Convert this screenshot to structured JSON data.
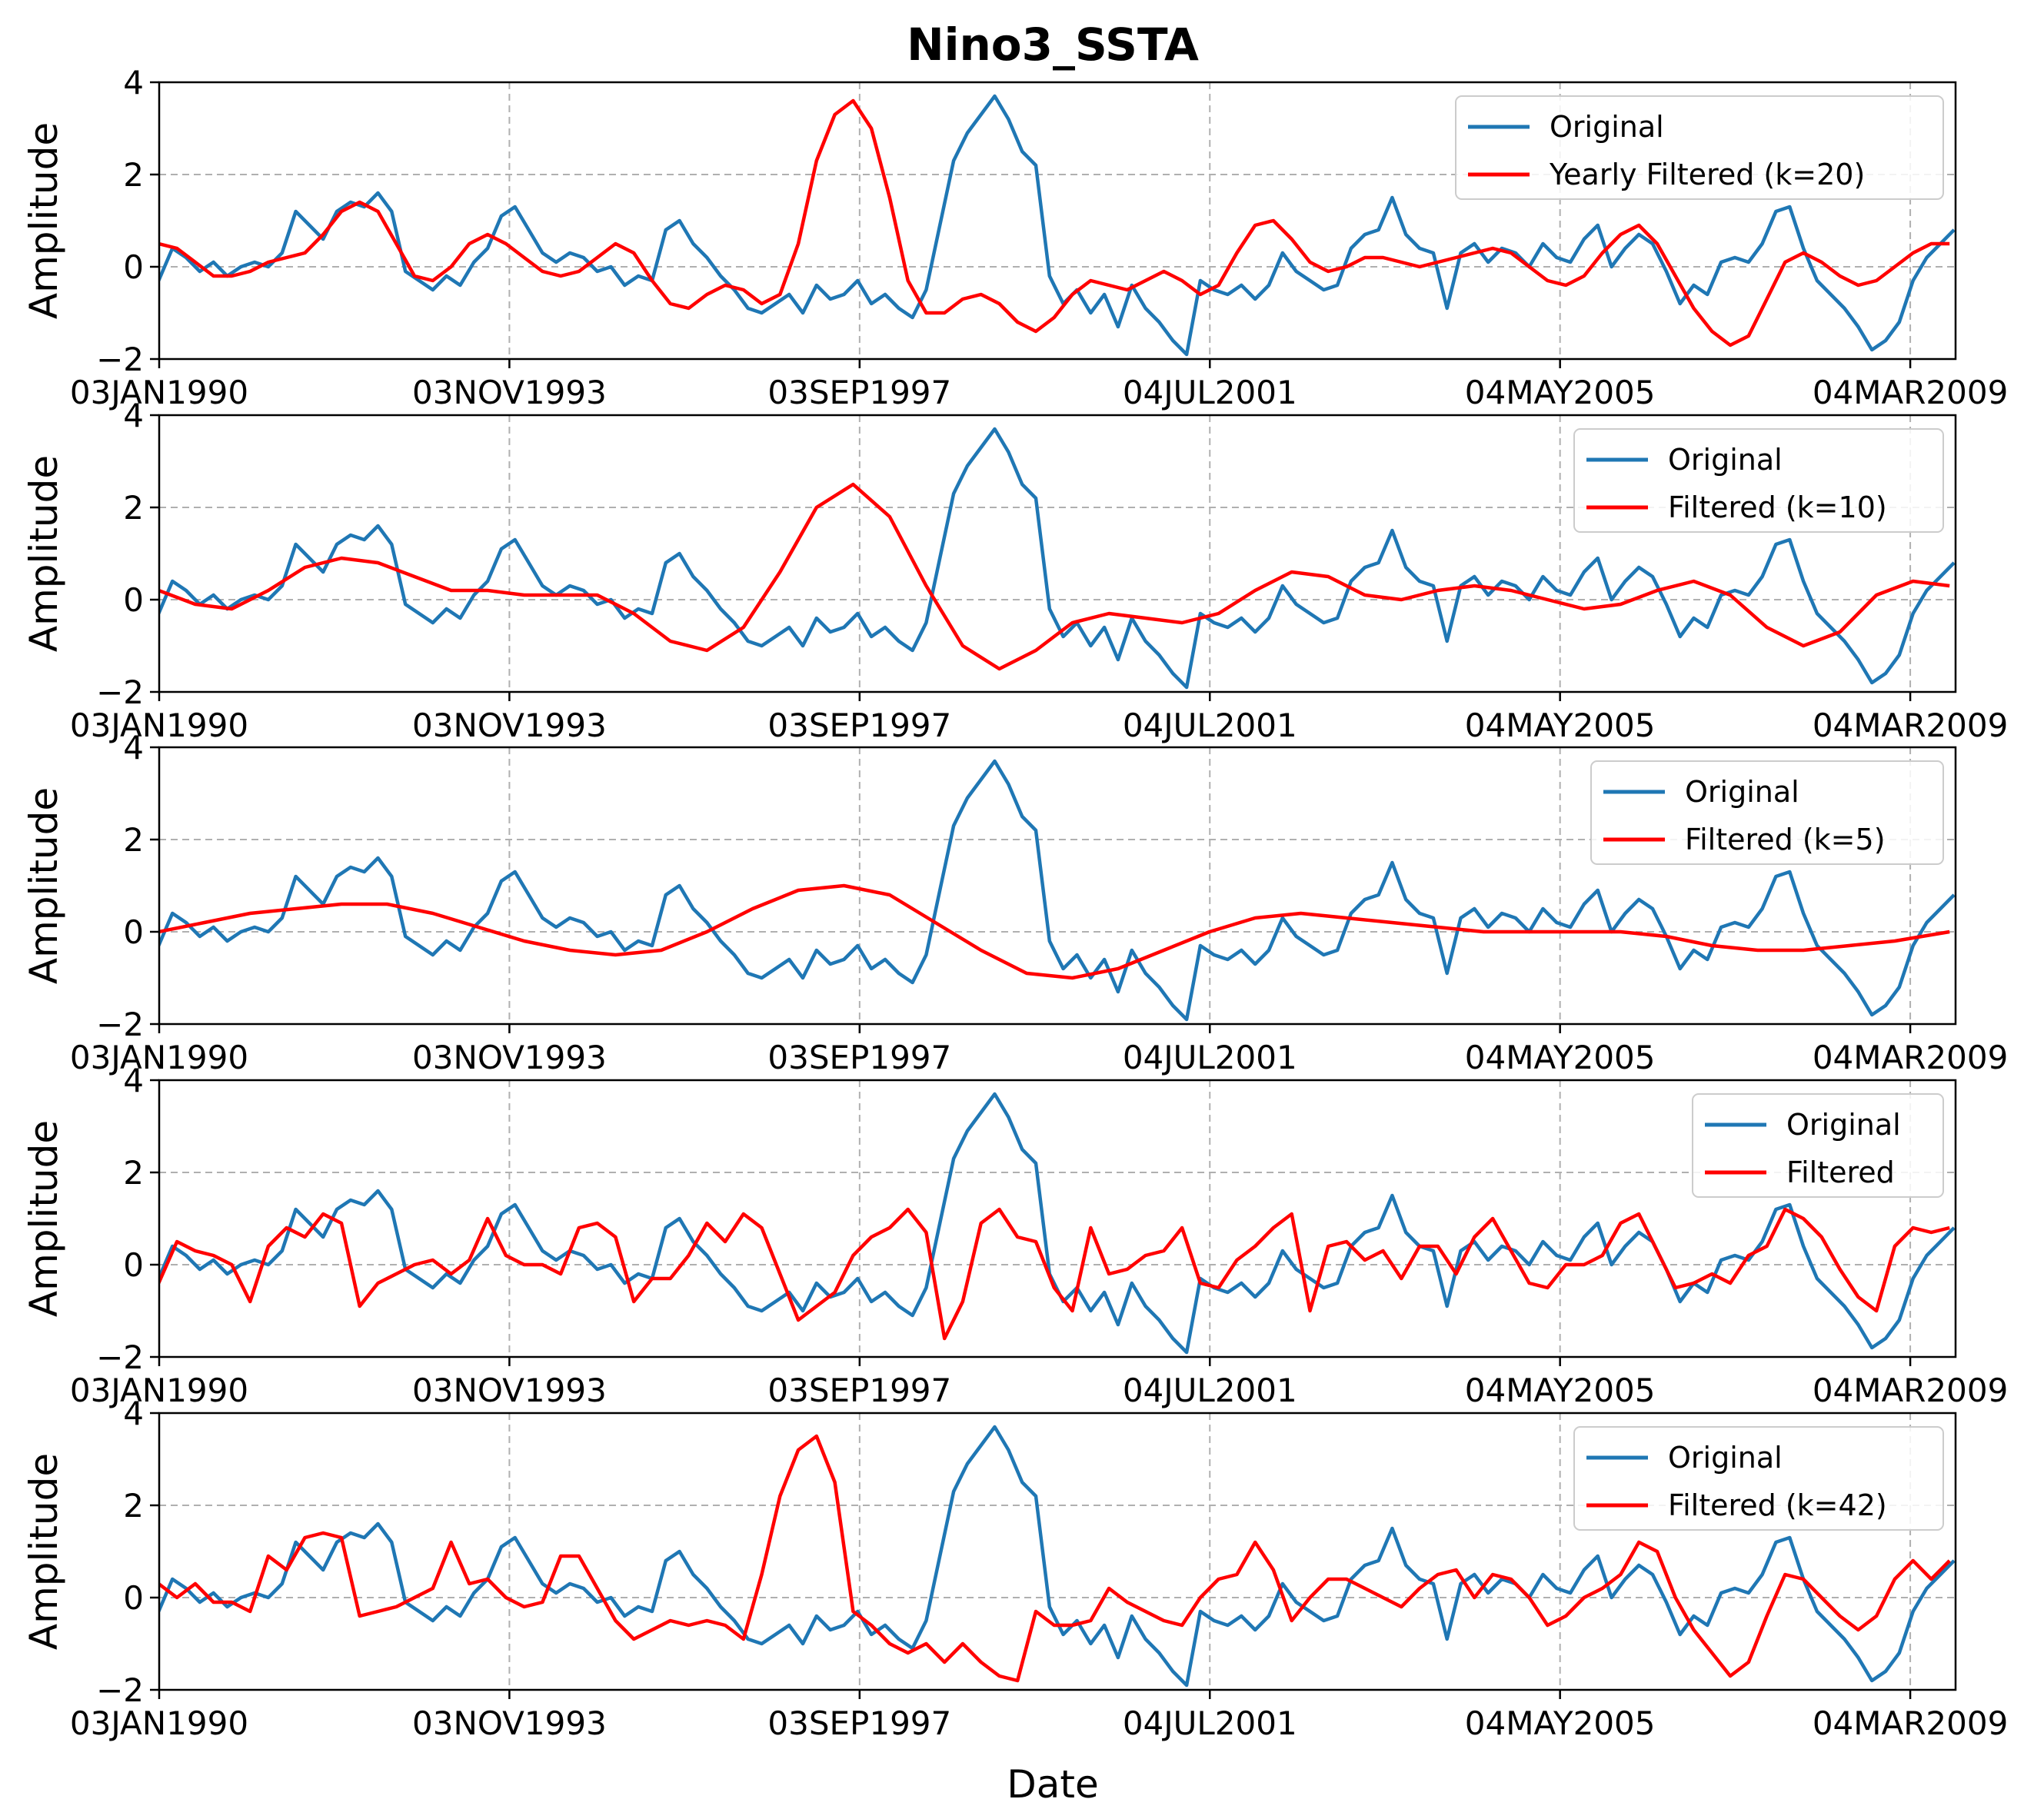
{
  "chart_data": {
    "type": "line",
    "title": "Nino3_SSTA",
    "xlabel": "Date",
    "ylabel": "Amplitude",
    "ylim": [
      -2,
      4
    ],
    "yticks": [
      "−2",
      "0",
      "2",
      "4"
    ],
    "xlim": [
      "1990-01-03",
      "2009-09-01"
    ],
    "xticks": [
      {
        "date": "1990-01-03",
        "label": "03JAN1990"
      },
      {
        "date": "1993-11-03",
        "label": "03NOV1993"
      },
      {
        "date": "1997-09-03",
        "label": "03SEP1997"
      },
      {
        "date": "2001-07-04",
        "label": "04JUL2001"
      },
      {
        "date": "2005-05-04",
        "label": "04MAY2005"
      },
      {
        "date": "2009-03-04",
        "label": "04MAR2009"
      }
    ],
    "grid": true,
    "legend_position": "top-right",
    "colors": {
      "original": "#1f77b4",
      "filtered": "#ff0000"
    },
    "original_series": {
      "name": "Original",
      "x": [
        1990.0,
        1990.15,
        1990.3,
        1990.45,
        1990.6,
        1990.75,
        1990.9,
        1991.05,
        1991.2,
        1991.35,
        1991.5,
        1991.65,
        1991.8,
        1991.95,
        1992.1,
        1992.25,
        1992.4,
        1992.55,
        1992.7,
        1992.85,
        1993.0,
        1993.15,
        1993.3,
        1993.45,
        1993.6,
        1993.75,
        1993.9,
        1994.05,
        1994.2,
        1994.35,
        1994.5,
        1994.65,
        1994.8,
        1994.95,
        1995.1,
        1995.25,
        1995.4,
        1995.55,
        1995.7,
        1995.85,
        1996.0,
        1996.15,
        1996.3,
        1996.45,
        1996.6,
        1996.75,
        1996.9,
        1997.05,
        1997.2,
        1997.35,
        1997.5,
        1997.65,
        1997.8,
        1997.95,
        1998.1,
        1998.25,
        1998.4,
        1998.55,
        1998.7,
        1998.85,
        1999.0,
        1999.15,
        1999.3,
        1999.45,
        1999.6,
        1999.75,
        1999.9,
        2000.05,
        2000.2,
        2000.35,
        2000.5,
        2000.65,
        2000.8,
        2000.95,
        2001.1,
        2001.25,
        2001.4,
        2001.55,
        2001.7,
        2001.85,
        2002.0,
        2002.15,
        2002.3,
        2002.45,
        2002.6,
        2002.75,
        2002.9,
        2003.05,
        2003.2,
        2003.35,
        2003.5,
        2003.65,
        2003.8,
        2003.95,
        2004.1,
        2004.25,
        2004.4,
        2004.55,
        2004.7,
        2004.85,
        2005.0,
        2005.15,
        2005.3,
        2005.45,
        2005.6,
        2005.75,
        2005.9,
        2006.05,
        2006.2,
        2006.35,
        2006.5,
        2006.65,
        2006.8,
        2006.95,
        2007.1,
        2007.25,
        2007.4,
        2007.55,
        2007.7,
        2007.85,
        2008.0,
        2008.15,
        2008.3,
        2008.45,
        2008.6,
        2008.75,
        2008.9,
        2009.05,
        2009.2,
        2009.35,
        2009.5,
        2009.65
      ],
      "y": [
        -0.3,
        0.4,
        0.2,
        -0.1,
        0.1,
        -0.2,
        0.0,
        0.1,
        0.0,
        0.3,
        1.2,
        0.9,
        0.6,
        1.2,
        1.4,
        1.3,
        1.6,
        1.2,
        -0.1,
        -0.3,
        -0.5,
        -0.2,
        -0.4,
        0.1,
        0.4,
        1.1,
        1.3,
        0.8,
        0.3,
        0.1,
        0.3,
        0.2,
        -0.1,
        0.0,
        -0.4,
        -0.2,
        -0.3,
        0.8,
        1.0,
        0.5,
        0.2,
        -0.2,
        -0.5,
        -0.9,
        -1.0,
        -0.8,
        -0.6,
        -1.0,
        -0.4,
        -0.7,
        -0.6,
        -0.3,
        -0.8,
        -0.6,
        -0.9,
        -1.1,
        -0.5,
        0.9,
        2.3,
        2.9,
        3.3,
        3.7,
        3.2,
        2.5,
        2.2,
        -0.2,
        -0.8,
        -0.5,
        -1.0,
        -0.6,
        -1.3,
        -0.4,
        -0.9,
        -1.2,
        -1.6,
        -1.9,
        -0.3,
        -0.5,
        -0.6,
        -0.4,
        -0.7,
        -0.4,
        0.3,
        -0.1,
        -0.3,
        -0.5,
        -0.4,
        0.4,
        0.7,
        0.8,
        1.5,
        0.7,
        0.4,
        0.3,
        -0.9,
        0.3,
        0.5,
        0.1,
        0.4,
        0.3,
        0.0,
        0.5,
        0.2,
        0.1,
        0.6,
        0.9,
        0.0,
        0.4,
        0.7,
        0.5,
        -0.1,
        -0.8,
        -0.4,
        -0.6,
        0.1,
        0.2,
        0.1,
        0.5,
        1.2,
        1.3,
        0.4,
        -0.3,
        -0.6,
        -0.9,
        -1.3,
        -1.8,
        -1.6,
        -1.2,
        -0.3,
        0.2,
        0.5,
        0.8
      ]
    },
    "panels": [
      {
        "filtered_name": "Yearly Filtered (k=20)",
        "filtered_x": [
          1990.0,
          1990.2,
          1990.4,
          1990.6,
          1990.8,
          1991.0,
          1991.2,
          1991.4,
          1991.6,
          1991.8,
          1992.0,
          1992.2,
          1992.4,
          1992.6,
          1992.8,
          1993.0,
          1993.2,
          1993.4,
          1993.6,
          1993.8,
          1994.0,
          1994.2,
          1994.4,
          1994.6,
          1994.8,
          1995.0,
          1995.2,
          1995.4,
          1995.6,
          1995.8,
          1996.0,
          1996.2,
          1996.4,
          1996.6,
          1996.8,
          1997.0,
          1997.2,
          1997.4,
          1997.6,
          1997.8,
          1998.0,
          1998.2,
          1998.4,
          1998.6,
          1998.8,
          1999.0,
          1999.2,
          1999.4,
          1999.6,
          1999.8,
          2000.0,
          2000.2,
          2000.4,
          2000.6,
          2000.8,
          2001.0,
          2001.2,
          2001.4,
          2001.6,
          2001.8,
          2002.0,
          2002.2,
          2002.4,
          2002.6,
          2002.8,
          2003.0,
          2003.2,
          2003.4,
          2003.6,
          2003.8,
          2004.0,
          2004.2,
          2004.4,
          2004.6,
          2004.8,
          2005.0,
          2005.2,
          2005.4,
          2005.6,
          2005.8,
          2006.0,
          2006.2,
          2006.4,
          2006.6,
          2006.8,
          2007.0,
          2007.2,
          2007.4,
          2007.6,
          2007.8,
          2008.0,
          2008.2,
          2008.4,
          2008.6,
          2008.8,
          2009.0,
          2009.2,
          2009.4,
          2009.6
        ],
        "filtered_y": [
          0.5,
          0.4,
          0.1,
          -0.2,
          -0.2,
          -0.1,
          0.1,
          0.2,
          0.3,
          0.7,
          1.2,
          1.4,
          1.2,
          0.5,
          -0.2,
          -0.3,
          0.0,
          0.5,
          0.7,
          0.5,
          0.2,
          -0.1,
          -0.2,
          -0.1,
          0.2,
          0.5,
          0.3,
          -0.3,
          -0.8,
          -0.9,
          -0.6,
          -0.4,
          -0.5,
          -0.8,
          -0.6,
          0.5,
          2.3,
          3.3,
          3.6,
          3.0,
          1.5,
          -0.3,
          -1.0,
          -1.0,
          -0.7,
          -0.6,
          -0.8,
          -1.2,
          -1.4,
          -1.1,
          -0.6,
          -0.3,
          -0.4,
          -0.5,
          -0.3,
          -0.1,
          -0.3,
          -0.6,
          -0.4,
          0.3,
          0.9,
          1.0,
          0.6,
          0.1,
          -0.1,
          0.0,
          0.2,
          0.2,
          0.1,
          0.0,
          0.1,
          0.2,
          0.3,
          0.4,
          0.3,
          0.0,
          -0.3,
          -0.4,
          -0.2,
          0.3,
          0.7,
          0.9,
          0.5,
          -0.2,
          -0.9,
          -1.4,
          -1.7,
          -1.5,
          -0.7,
          0.1,
          0.3,
          0.1,
          -0.2,
          -0.4,
          -0.3,
          0.0,
          0.3,
          0.5,
          0.5
        ]
      },
      {
        "filtered_name": "Filtered (k=10)",
        "filtered_x": [
          1990.0,
          1990.4,
          1990.8,
          1991.2,
          1991.6,
          1992.0,
          1992.4,
          1992.8,
          1993.2,
          1993.6,
          1994.0,
          1994.4,
          1994.8,
          1995.2,
          1995.6,
          1996.0,
          1996.4,
          1996.8,
          1997.2,
          1997.6,
          1998.0,
          1998.4,
          1998.8,
          1999.2,
          1999.6,
          2000.0,
          2000.4,
          2000.8,
          2001.2,
          2001.6,
          2002.0,
          2002.4,
          2002.8,
          2003.2,
          2003.6,
          2004.0,
          2004.4,
          2004.8,
          2005.2,
          2005.6,
          2006.0,
          2006.4,
          2006.8,
          2007.2,
          2007.6,
          2008.0,
          2008.4,
          2008.8,
          2009.2,
          2009.6
        ],
        "filtered_y": [
          0.2,
          -0.1,
          -0.2,
          0.2,
          0.7,
          0.9,
          0.8,
          0.5,
          0.2,
          0.2,
          0.1,
          0.1,
          0.1,
          -0.3,
          -0.9,
          -1.1,
          -0.6,
          0.6,
          2.0,
          2.5,
          1.8,
          0.3,
          -1.0,
          -1.5,
          -1.1,
          -0.5,
          -0.3,
          -0.4,
          -0.5,
          -0.3,
          0.2,
          0.6,
          0.5,
          0.1,
          0.0,
          0.2,
          0.3,
          0.2,
          0.0,
          -0.2,
          -0.1,
          0.2,
          0.4,
          0.1,
          -0.6,
          -1.0,
          -0.7,
          0.1,
          0.4,
          0.3
        ]
      },
      {
        "filtered_name": "Filtered (k=5)",
        "filtered_x": [
          1990.0,
          1990.5,
          1991.0,
          1991.5,
          1992.0,
          1992.5,
          1993.0,
          1993.5,
          1994.0,
          1994.5,
          1995.0,
          1995.5,
          1996.0,
          1996.5,
          1997.0,
          1997.5,
          1998.0,
          1998.5,
          1999.0,
          1999.5,
          2000.0,
          2000.5,
          2001.0,
          2001.5,
          2002.0,
          2002.5,
          2003.0,
          2003.5,
          2004.0,
          2004.5,
          2005.0,
          2005.5,
          2006.0,
          2006.5,
          2007.0,
          2007.5,
          2008.0,
          2008.5,
          2009.0,
          2009.6
        ],
        "filtered_y": [
          0.0,
          0.2,
          0.4,
          0.5,
          0.6,
          0.6,
          0.4,
          0.1,
          -0.2,
          -0.4,
          -0.5,
          -0.4,
          0.0,
          0.5,
          0.9,
          1.0,
          0.8,
          0.2,
          -0.4,
          -0.9,
          -1.0,
          -0.8,
          -0.4,
          0.0,
          0.3,
          0.4,
          0.3,
          0.2,
          0.1,
          0.0,
          0.0,
          0.0,
          0.0,
          -0.1,
          -0.3,
          -0.4,
          -0.4,
          -0.3,
          -0.2,
          0.0
        ]
      },
      {
        "filtered_name": "Filtered",
        "filtered_x": [
          1990.0,
          1990.2,
          1990.4,
          1990.6,
          1990.8,
          1991.0,
          1991.2,
          1991.4,
          1991.6,
          1991.8,
          1992.0,
          1992.2,
          1992.4,
          1992.6,
          1992.8,
          1993.0,
          1993.2,
          1993.4,
          1993.6,
          1993.8,
          1994.0,
          1994.2,
          1994.4,
          1994.6,
          1994.8,
          1995.0,
          1995.2,
          1995.4,
          1995.6,
          1995.8,
          1996.0,
          1996.2,
          1996.4,
          1996.6,
          1996.8,
          1997.0,
          1997.2,
          1997.4,
          1997.6,
          1997.8,
          1998.0,
          1998.2,
          1998.4,
          1998.6,
          1998.8,
          1999.0,
          1999.2,
          1999.4,
          1999.6,
          1999.8,
          2000.0,
          2000.2,
          2000.4,
          2000.6,
          2000.8,
          2001.0,
          2001.2,
          2001.4,
          2001.6,
          2001.8,
          2002.0,
          2002.2,
          2002.4,
          2002.6,
          2002.8,
          2003.0,
          2003.2,
          2003.4,
          2003.6,
          2003.8,
          2004.0,
          2004.2,
          2004.4,
          2004.6,
          2004.8,
          2005.0,
          2005.2,
          2005.4,
          2005.6,
          2005.8,
          2006.0,
          2006.2,
          2006.4,
          2006.6,
          2006.8,
          2007.0,
          2007.2,
          2007.4,
          2007.6,
          2007.8,
          2008.0,
          2008.2,
          2008.4,
          2008.6,
          2008.8,
          2009.0,
          2009.2,
          2009.4,
          2009.6
        ],
        "filtered_y": [
          -0.4,
          0.5,
          0.3,
          0.2,
          0.0,
          -0.8,
          0.4,
          0.8,
          0.6,
          1.1,
          0.9,
          -0.9,
          -0.4,
          -0.2,
          0.0,
          0.1,
          -0.2,
          0.1,
          1.0,
          0.2,
          0.0,
          0.0,
          -0.2,
          0.8,
          0.9,
          0.6,
          -0.8,
          -0.3,
          -0.3,
          0.2,
          0.9,
          0.5,
          1.1,
          0.8,
          -0.2,
          -1.2,
          -0.9,
          -0.6,
          0.2,
          0.6,
          0.8,
          1.2,
          0.7,
          -1.6,
          -0.8,
          0.9,
          1.2,
          0.6,
          0.5,
          -0.5,
          -1.0,
          0.8,
          -0.2,
          -0.1,
          0.2,
          0.3,
          0.8,
          -0.4,
          -0.5,
          0.1,
          0.4,
          0.8,
          1.1,
          -1.0,
          0.4,
          0.5,
          0.1,
          0.3,
          -0.3,
          0.4,
          0.4,
          -0.2,
          0.6,
          1.0,
          0.3,
          -0.4,
          -0.5,
          0.0,
          0.0,
          0.2,
          0.9,
          1.1,
          0.3,
          -0.5,
          -0.4,
          -0.2,
          -0.4,
          0.2,
          0.4,
          1.2,
          1.0,
          0.6,
          -0.1,
          -0.7,
          -1.0,
          0.4,
          0.8,
          0.7,
          0.8
        ]
      },
      {
        "filtered_name": "Filtered (k=42)",
        "filtered_x": [
          1990.0,
          1990.2,
          1990.4,
          1990.6,
          1990.8,
          1991.0,
          1991.2,
          1991.4,
          1991.6,
          1991.8,
          1992.0,
          1992.2,
          1992.4,
          1992.6,
          1992.8,
          1993.0,
          1993.2,
          1993.4,
          1993.6,
          1993.8,
          1994.0,
          1994.2,
          1994.4,
          1994.6,
          1994.8,
          1995.0,
          1995.2,
          1995.4,
          1995.6,
          1995.8,
          1996.0,
          1996.2,
          1996.4,
          1996.6,
          1996.8,
          1997.0,
          1997.2,
          1997.4,
          1997.6,
          1997.8,
          1998.0,
          1998.2,
          1998.4,
          1998.6,
          1998.8,
          1999.0,
          1999.2,
          1999.4,
          1999.6,
          1999.8,
          2000.0,
          2000.2,
          2000.4,
          2000.6,
          2000.8,
          2001.0,
          2001.2,
          2001.4,
          2001.6,
          2001.8,
          2002.0,
          2002.2,
          2002.4,
          2002.6,
          2002.8,
          2003.0,
          2003.2,
          2003.4,
          2003.6,
          2003.8,
          2004.0,
          2004.2,
          2004.4,
          2004.6,
          2004.8,
          2005.0,
          2005.2,
          2005.4,
          2005.6,
          2005.8,
          2006.0,
          2006.2,
          2006.4,
          2006.6,
          2006.8,
          2007.0,
          2007.2,
          2007.4,
          2007.6,
          2007.8,
          2008.0,
          2008.2,
          2008.4,
          2008.6,
          2008.8,
          2009.0,
          2009.2,
          2009.4,
          2009.6
        ],
        "filtered_y": [
          0.3,
          0.0,
          0.3,
          -0.1,
          -0.1,
          -0.3,
          0.9,
          0.6,
          1.3,
          1.4,
          1.3,
          -0.4,
          -0.3,
          -0.2,
          0.0,
          0.2,
          1.2,
          0.3,
          0.4,
          0.0,
          -0.2,
          -0.1,
          0.9,
          0.9,
          0.2,
          -0.5,
          -0.9,
          -0.7,
          -0.5,
          -0.6,
          -0.5,
          -0.6,
          -0.9,
          0.5,
          2.2,
          3.2,
          3.5,
          2.5,
          -0.3,
          -0.6,
          -1.0,
          -1.2,
          -1.0,
          -1.4,
          -1.0,
          -1.4,
          -1.7,
          -1.8,
          -0.3,
          -0.6,
          -0.6,
          -0.5,
          0.2,
          -0.1,
          -0.3,
          -0.5,
          -0.6,
          0.0,
          0.4,
          0.5,
          1.2,
          0.6,
          -0.5,
          0.0,
          0.4,
          0.4,
          0.2,
          0.0,
          -0.2,
          0.2,
          0.5,
          0.6,
          0.0,
          0.5,
          0.4,
          0.0,
          -0.6,
          -0.4,
          0.0,
          0.2,
          0.5,
          1.2,
          1.0,
          0.0,
          -0.7,
          -1.2,
          -1.7,
          -1.4,
          -0.4,
          0.5,
          0.4,
          0.0,
          -0.4,
          -0.7,
          -0.4,
          0.4,
          0.8,
          0.4,
          0.8
        ]
      }
    ]
  }
}
